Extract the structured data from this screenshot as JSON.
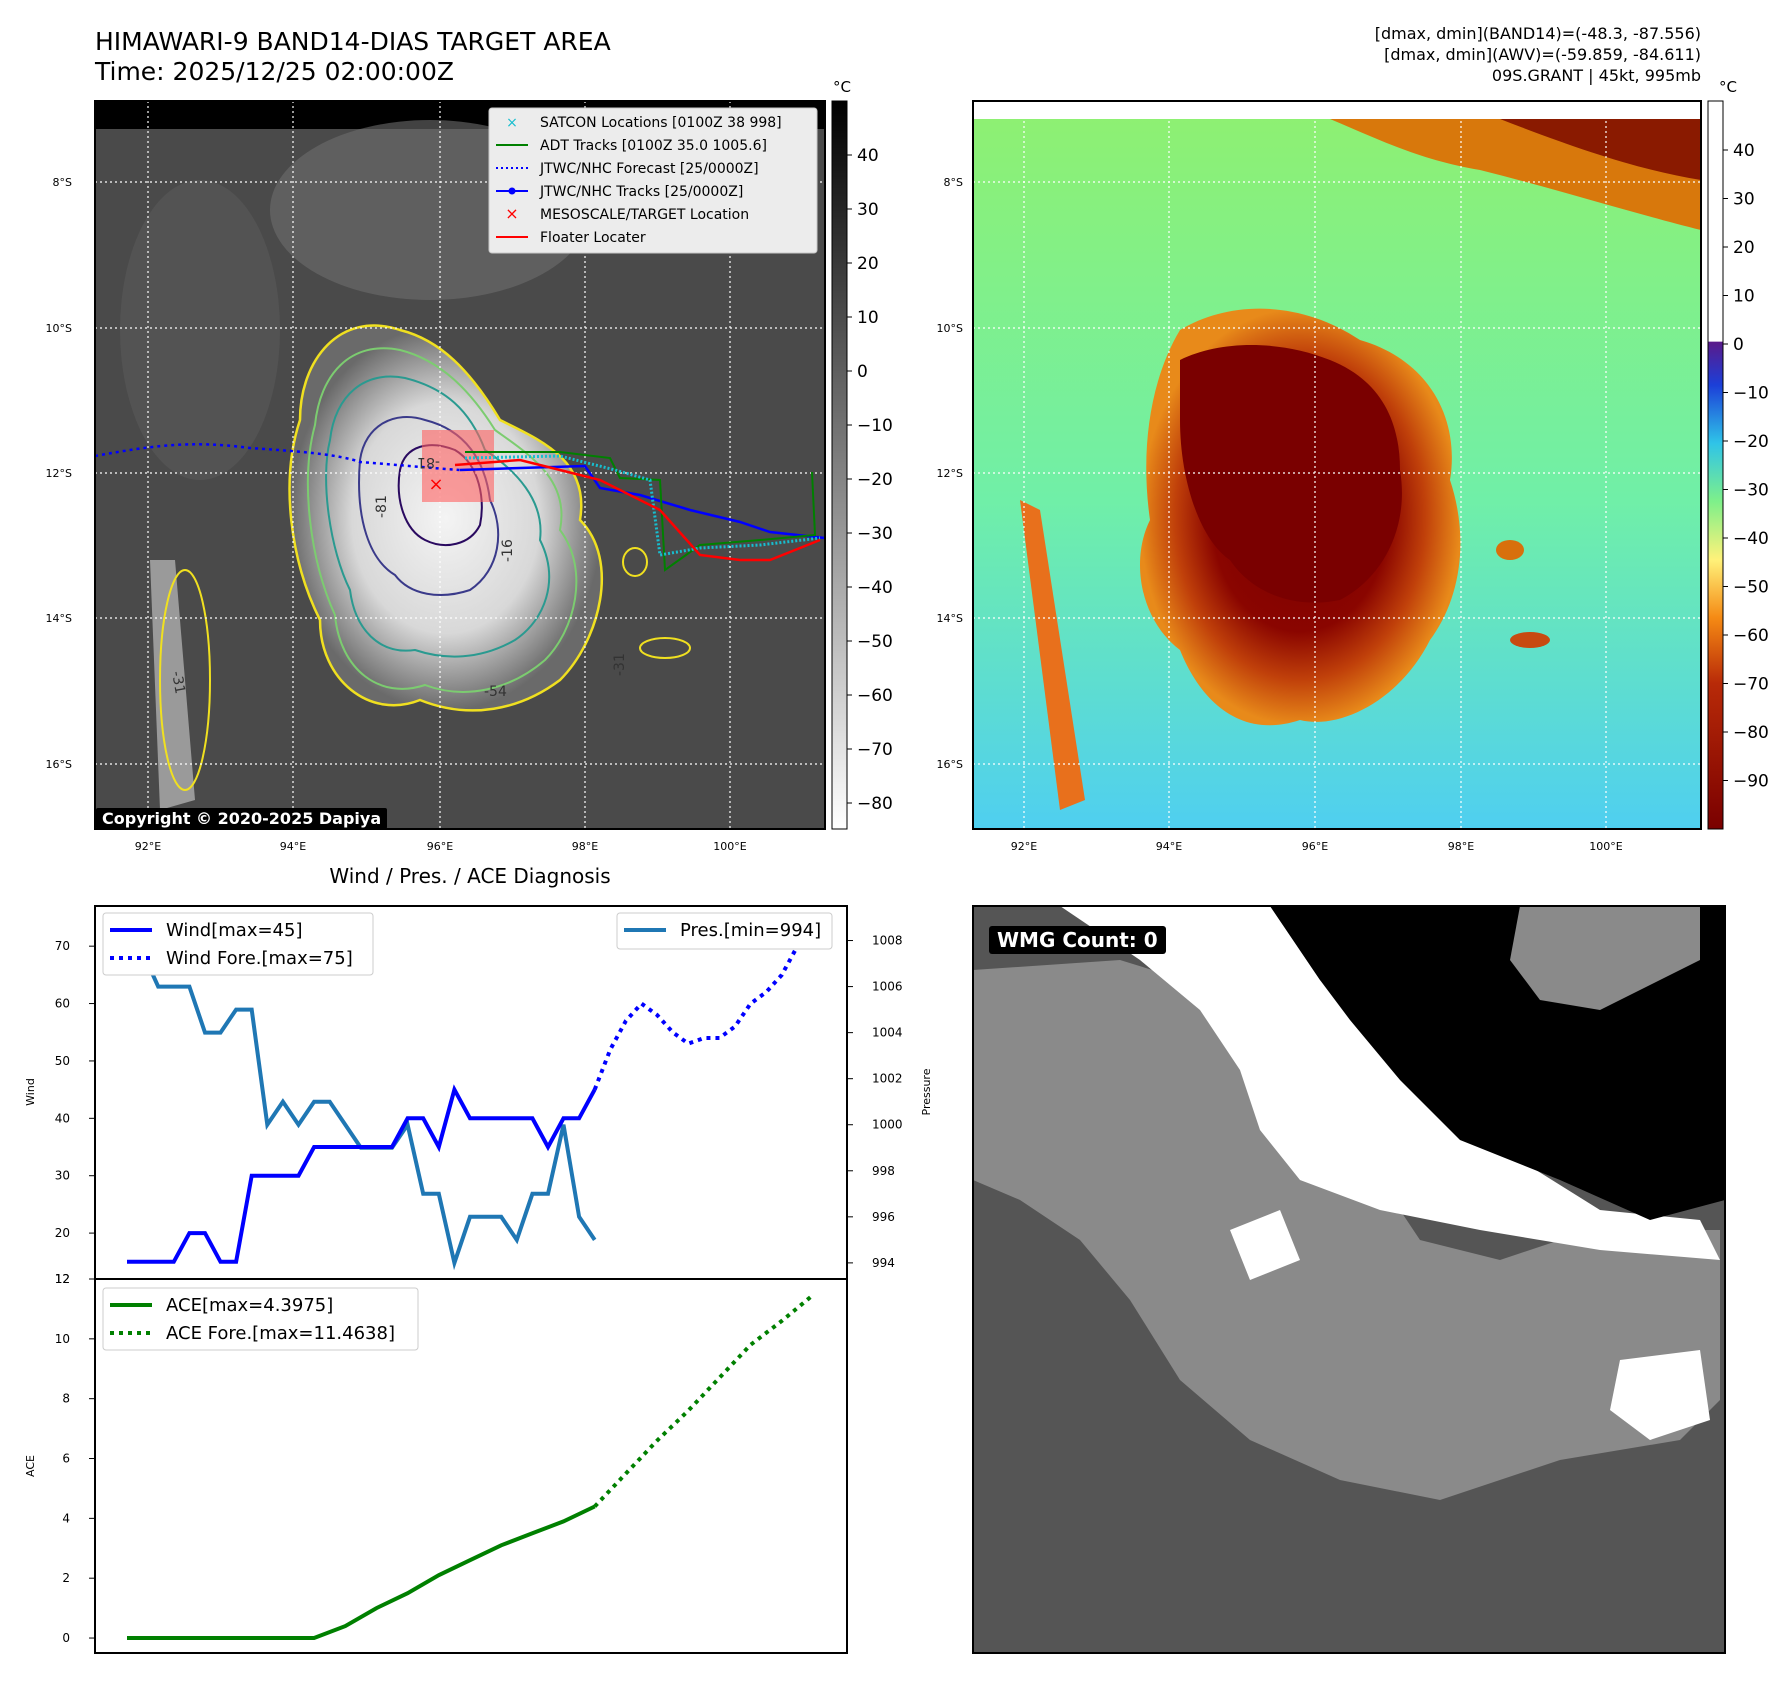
{
  "header": {
    "title_line1": "HIMAWARI-9 BAND14-DIAS TARGET AREA",
    "title_line2": "Time: 2025/12/25 02:00:00Z",
    "stats_line1": "[dmax, dmin](BAND14)=(-48.3, -87.556)",
    "stats_line2": "[dmax, dmin](AWV)=(-59.859, -84.611)",
    "stats_line3": "09S.GRANT | 45kt, 995mb"
  },
  "map": {
    "lat_labels": [
      "8°S",
      "10°S",
      "12°S",
      "14°S",
      "16°S"
    ],
    "lon_labels": [
      "92°E",
      "94°E",
      "96°E",
      "98°E",
      "100°E"
    ],
    "copyright": "Copyright © 2020-2025 Dapiya",
    "contour_labels": [
      "-81",
      "-16",
      "-31",
      "-54",
      "-31",
      "-81"
    ],
    "legend": [
      {
        "label": "SATCON Locations [0100Z 38 998]",
        "color": "#17becf"
      },
      {
        "label": "ADT Tracks [0100Z 35.0 1005.6]",
        "color": "#008000"
      },
      {
        "label": "JTWC/NHC Forecast [25/0000Z]",
        "color": "#0000ff"
      },
      {
        "label": "JTWC/NHC Tracks [25/0000Z]",
        "color": "#0000ff"
      },
      {
        "label": "MESOSCALE/TARGET Location",
        "color": "#ff0000"
      },
      {
        "label": "Floater Locater",
        "color": "#ff0000"
      }
    ]
  },
  "colorbar_gray": {
    "unit": "°C",
    "ticks": [
      "40",
      "30",
      "20",
      "10",
      "0",
      "−10",
      "−20",
      "−30",
      "−40",
      "−50",
      "−60",
      "−70",
      "−80"
    ]
  },
  "colorbar_color": {
    "unit": "°C",
    "ticks": [
      "40",
      "30",
      "20",
      "10",
      "0",
      "−10",
      "−20",
      "−30",
      "−40",
      "−50",
      "−60",
      "−70",
      "−80",
      "−90"
    ]
  },
  "wmg": {
    "label": "WMG Count: 0"
  },
  "chart_data": [
    {
      "type": "line",
      "title": "Wind / Pres. / ACE Diagnosis",
      "ylabel": "Wind",
      "ylim": [
        12,
        77
      ],
      "yticks": [
        "70",
        "60",
        "50",
        "40",
        "30",
        "20",
        "12"
      ],
      "series": [
        {
          "name": "Wind[max=45]",
          "color": "#0000ff",
          "style": "solid",
          "x": [
            0,
            2,
            3,
            4,
            5,
            6,
            7,
            8,
            9,
            10,
            11,
            12,
            13,
            14,
            15,
            16,
            17,
            18,
            19,
            20,
            21,
            22,
            23,
            24,
            25,
            26,
            27,
            28,
            29,
            30
          ],
          "values": [
            15,
            15,
            15,
            20,
            20,
            15,
            15,
            30,
            30,
            30,
            30,
            35,
            35,
            35,
            35,
            35,
            35,
            40,
            40,
            35,
            45,
            40,
            40,
            40,
            40,
            40,
            35,
            40,
            40,
            45
          ]
        },
        {
          "name": "Wind Fore.[max=75]",
          "color": "#0000ff",
          "style": "dotted",
          "x": [
            30,
            31,
            32,
            33,
            34,
            35,
            36,
            37,
            38,
            39,
            40,
            41,
            42,
            43,
            44
          ],
          "values": [
            45,
            52,
            57,
            60,
            58,
            55,
            53,
            54,
            54,
            56,
            60,
            62,
            65,
            70,
            75
          ]
        }
      ],
      "secondary": {
        "ylabel": "Pressure",
        "ylim": [
          993.3,
          1009.5
        ],
        "yticks": [
          "1008",
          "1006",
          "1004",
          "1002",
          "1000",
          "998",
          "996",
          "994"
        ],
        "series": [
          {
            "name": "Pres.[min=994]",
            "color": "#1f77b4",
            "style": "solid",
            "x": [
              0,
              2,
              3,
              4,
              5,
              6,
              7,
              8,
              9,
              10,
              11,
              12,
              13,
              14,
              15,
              16,
              17,
              18,
              19,
              20,
              21,
              22,
              23,
              24,
              25,
              26,
              27,
              28,
              29,
              30
            ],
            "values": [
              1009,
              1006,
              1006,
              1006,
              1004,
              1004,
              1005,
              1005,
              1000,
              1001,
              1000,
              1001,
              1001,
              1000,
              999,
              999,
              999,
              1000,
              997,
              997,
              994,
              996,
              996,
              996,
              995,
              997,
              997,
              1000,
              996,
              995
            ]
          }
        ]
      }
    },
    {
      "type": "line",
      "ylabel": "ACE",
      "ylim": [
        -0.5,
        12
      ],
      "yticks": [
        "12",
        "10",
        "8",
        "6",
        "4",
        "2",
        "0"
      ],
      "series": [
        {
          "name": "ACE[max=4.3975]",
          "color": "#008000",
          "style": "solid",
          "x": [
            0,
            4,
            8,
            12,
            14,
            16,
            18,
            20,
            22,
            24,
            26,
            28,
            30
          ],
          "values": [
            0,
            0,
            0,
            0,
            0.4,
            1.0,
            1.5,
            2.1,
            2.6,
            3.1,
            3.5,
            3.9,
            4.3975
          ]
        },
        {
          "name": "ACE Fore.[max=11.4638]",
          "color": "#008000",
          "style": "dotted",
          "x": [
            30,
            32,
            34,
            36,
            38,
            40,
            42,
            44
          ],
          "values": [
            4.3975,
            5.5,
            6.6,
            7.6,
            8.7,
            9.8,
            10.6,
            11.4638
          ]
        }
      ]
    }
  ]
}
